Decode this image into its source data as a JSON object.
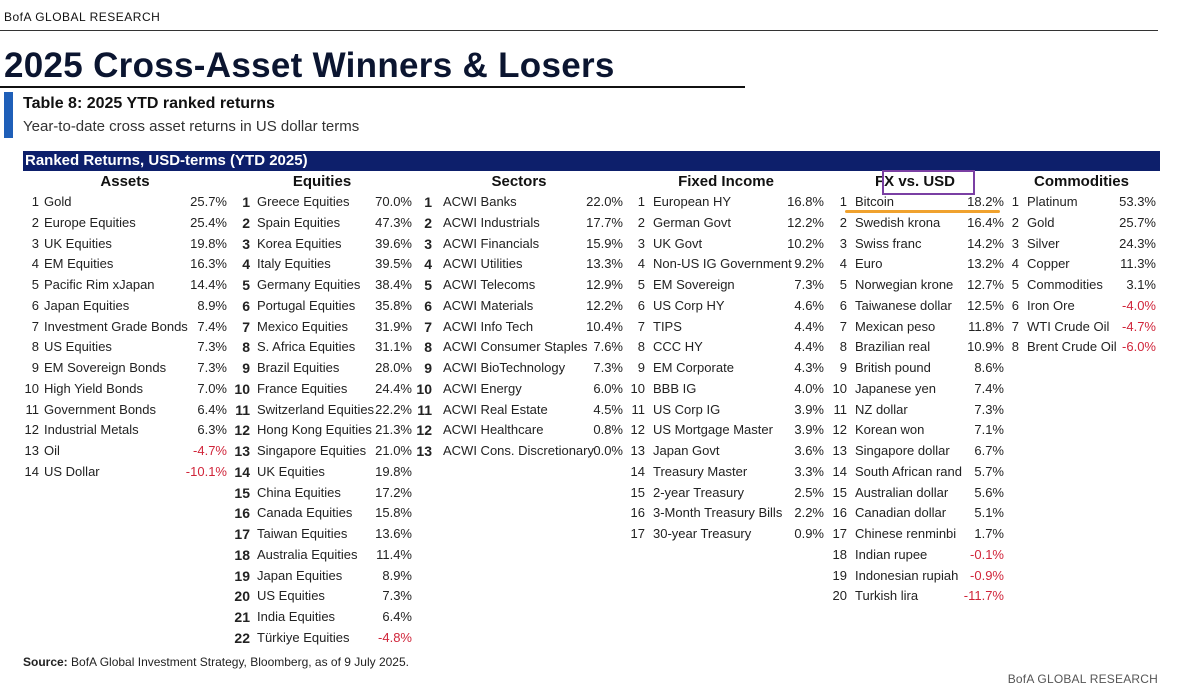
{
  "brand_top": "BofA GLOBAL RESEARCH",
  "main_title": "2025 Cross-Asset Winners & Losers",
  "table_title": "Table 8: 2025 YTD ranked returns",
  "table_subtitle": "Year-to-date cross asset returns in US dollar terms",
  "banner": "Ranked Returns, USD-terms (YTD 2025)",
  "colors": {
    "banner": "#0d1f6b",
    "accent": "#1f5fb8",
    "negative": "#d0253a",
    "highlight_box": "#7a3fa3",
    "highlight_line": "#f0a22e"
  },
  "columns": [
    {
      "key": "assets",
      "header": "Assets",
      "rows": [
        {
          "rank": "1",
          "name": "Gold",
          "value": "25.7%",
          "neg": false
        },
        {
          "rank": "2",
          "name": "Europe Equities",
          "value": "25.4%",
          "neg": false
        },
        {
          "rank": "3",
          "name": "UK Equities",
          "value": "19.8%",
          "neg": false
        },
        {
          "rank": "4",
          "name": "EM Equities",
          "value": "16.3%",
          "neg": false
        },
        {
          "rank": "5",
          "name": "Pacific Rim xJapan",
          "value": "14.4%",
          "neg": false
        },
        {
          "rank": "6",
          "name": "Japan Equities",
          "value": "8.9%",
          "neg": false
        },
        {
          "rank": "7",
          "name": "Investment Grade Bonds",
          "value": "7.4%",
          "neg": false
        },
        {
          "rank": "8",
          "name": "US Equities",
          "value": "7.3%",
          "neg": false
        },
        {
          "rank": "9",
          "name": "EM Sovereign Bonds",
          "value": "7.3%",
          "neg": false
        },
        {
          "rank": "10",
          "name": "High Yield Bonds",
          "value": "7.0%",
          "neg": false
        },
        {
          "rank": "11",
          "name": "Government Bonds",
          "value": "6.4%",
          "neg": false
        },
        {
          "rank": "12",
          "name": "Industrial Metals",
          "value": "6.3%",
          "neg": false
        },
        {
          "rank": "13",
          "name": "Oil",
          "value": "-4.7%",
          "neg": true
        },
        {
          "rank": "14",
          "name": "US Dollar",
          "value": "-10.1%",
          "neg": true
        }
      ]
    },
    {
      "key": "equities",
      "header": "Equities",
      "rows": [
        {
          "rank": "1",
          "name": "Greece Equities",
          "value": "70.0%",
          "neg": false
        },
        {
          "rank": "2",
          "name": "Spain Equities",
          "value": "47.3%",
          "neg": false
        },
        {
          "rank": "3",
          "name": "Korea Equities",
          "value": "39.6%",
          "neg": false
        },
        {
          "rank": "4",
          "name": "Italy Equities",
          "value": "39.5%",
          "neg": false
        },
        {
          "rank": "5",
          "name": "Germany Equities",
          "value": "38.4%",
          "neg": false
        },
        {
          "rank": "6",
          "name": "Portugal Equities",
          "value": "35.8%",
          "neg": false
        },
        {
          "rank": "7",
          "name": "Mexico Equities",
          "value": "31.9%",
          "neg": false
        },
        {
          "rank": "8",
          "name": "S. Africa Equities",
          "value": "31.1%",
          "neg": false
        },
        {
          "rank": "9",
          "name": "Brazil Equities",
          "value": "28.0%",
          "neg": false
        },
        {
          "rank": "10",
          "name": "France Equities",
          "value": "24.4%",
          "neg": false
        },
        {
          "rank": "11",
          "name": "Switzerland Equities",
          "value": "22.2%",
          "neg": false
        },
        {
          "rank": "12",
          "name": "Hong Kong Equities",
          "value": "21.3%",
          "neg": false
        },
        {
          "rank": "13",
          "name": "Singapore Equities",
          "value": "21.0%",
          "neg": false
        },
        {
          "rank": "14",
          "name": "UK Equities",
          "value": "19.8%",
          "neg": false
        },
        {
          "rank": "15",
          "name": "China Equities",
          "value": "17.2%",
          "neg": false
        },
        {
          "rank": "16",
          "name": "Canada Equities",
          "value": "15.8%",
          "neg": false
        },
        {
          "rank": "17",
          "name": "Taiwan Equities",
          "value": "13.6%",
          "neg": false
        },
        {
          "rank": "18",
          "name": "Australia Equities",
          "value": "11.4%",
          "neg": false
        },
        {
          "rank": "19",
          "name": "Japan Equities",
          "value": "8.9%",
          "neg": false
        },
        {
          "rank": "20",
          "name": "US Equities",
          "value": "7.3%",
          "neg": false
        },
        {
          "rank": "21",
          "name": "India Equities",
          "value": "6.4%",
          "neg": false
        },
        {
          "rank": "22",
          "name": "Türkiye Equities",
          "value": "-4.8%",
          "neg": true
        }
      ]
    },
    {
      "key": "sectors",
      "header": "Sectors",
      "rows": [
        {
          "rank": "1",
          "name": "ACWI Banks",
          "value": "22.0%",
          "neg": false
        },
        {
          "rank": "2",
          "name": "ACWI Industrials",
          "value": "17.7%",
          "neg": false
        },
        {
          "rank": "3",
          "name": "ACWI Financials",
          "value": "15.9%",
          "neg": false
        },
        {
          "rank": "4",
          "name": "ACWI Utilities",
          "value": "13.3%",
          "neg": false
        },
        {
          "rank": "5",
          "name": "ACWI Telecoms",
          "value": "12.9%",
          "neg": false
        },
        {
          "rank": "6",
          "name": "ACWI Materials",
          "value": "12.2%",
          "neg": false
        },
        {
          "rank": "7",
          "name": "ACWI Info Tech",
          "value": "10.4%",
          "neg": false
        },
        {
          "rank": "8",
          "name": "ACWI Consumer Staples",
          "value": "7.6%",
          "neg": false
        },
        {
          "rank": "9",
          "name": "ACWI BioTechnology",
          "value": "7.3%",
          "neg": false
        },
        {
          "rank": "10",
          "name": "ACWI Energy",
          "value": "6.0%",
          "neg": false
        },
        {
          "rank": "11",
          "name": "ACWI Real Estate",
          "value": "4.5%",
          "neg": false
        },
        {
          "rank": "12",
          "name": "ACWI Healthcare",
          "value": "0.8%",
          "neg": false
        },
        {
          "rank": "13",
          "name": "ACWI Cons. Discretionary",
          "value": "0.0%",
          "neg": false
        }
      ]
    },
    {
      "key": "fixed",
      "header": "Fixed Income",
      "rows": [
        {
          "rank": "1",
          "name": "European HY",
          "value": "16.8%",
          "neg": false
        },
        {
          "rank": "2",
          "name": "German Govt",
          "value": "12.2%",
          "neg": false
        },
        {
          "rank": "3",
          "name": "UK Govt",
          "value": "10.2%",
          "neg": false
        },
        {
          "rank": "4",
          "name": "Non-US IG Government",
          "value": "9.2%",
          "neg": false
        },
        {
          "rank": "5",
          "name": "EM Sovereign",
          "value": "7.3%",
          "neg": false
        },
        {
          "rank": "6",
          "name": "US Corp HY",
          "value": "4.6%",
          "neg": false
        },
        {
          "rank": "7",
          "name": "TIPS",
          "value": "4.4%",
          "neg": false
        },
        {
          "rank": "8",
          "name": "CCC HY",
          "value": "4.4%",
          "neg": false
        },
        {
          "rank": "9",
          "name": "EM Corporate",
          "value": "4.3%",
          "neg": false
        },
        {
          "rank": "10",
          "name": "BBB IG",
          "value": "4.0%",
          "neg": false
        },
        {
          "rank": "11",
          "name": "US Corp IG",
          "value": "3.9%",
          "neg": false
        },
        {
          "rank": "12",
          "name": "US Mortgage Master",
          "value": "3.9%",
          "neg": false
        },
        {
          "rank": "13",
          "name": "Japan Govt",
          "value": "3.6%",
          "neg": false
        },
        {
          "rank": "14",
          "name": "Treasury Master",
          "value": "3.3%",
          "neg": false
        },
        {
          "rank": "15",
          "name": "2-year Treasury",
          "value": "2.5%",
          "neg": false
        },
        {
          "rank": "16",
          "name": "3-Month Treasury Bills",
          "value": "2.2%",
          "neg": false
        },
        {
          "rank": "17",
          "name": "30-year Treasury",
          "value": "0.9%",
          "neg": false
        }
      ]
    },
    {
      "key": "fx",
      "header": "FX vs. USD",
      "rows": [
        {
          "rank": "1",
          "name": "Bitcoin",
          "value": "18.2%",
          "neg": false
        },
        {
          "rank": "2",
          "name": "Swedish krona",
          "value": "16.4%",
          "neg": false
        },
        {
          "rank": "3",
          "name": "Swiss franc",
          "value": "14.2%",
          "neg": false
        },
        {
          "rank": "4",
          "name": "Euro",
          "value": "13.2%",
          "neg": false
        },
        {
          "rank": "5",
          "name": "Norwegian krone",
          "value": "12.7%",
          "neg": false
        },
        {
          "rank": "6",
          "name": "Taiwanese dollar",
          "value": "12.5%",
          "neg": false
        },
        {
          "rank": "7",
          "name": "Mexican peso",
          "value": "11.8%",
          "neg": false
        },
        {
          "rank": "8",
          "name": "Brazilian real",
          "value": "10.9%",
          "neg": false
        },
        {
          "rank": "9",
          "name": "British pound",
          "value": "8.6%",
          "neg": false
        },
        {
          "rank": "10",
          "name": "Japanese yen",
          "value": "7.4%",
          "neg": false
        },
        {
          "rank": "11",
          "name": "NZ dollar",
          "value": "7.3%",
          "neg": false
        },
        {
          "rank": "12",
          "name": "Korean won",
          "value": "7.1%",
          "neg": false
        },
        {
          "rank": "13",
          "name": "Singapore dollar",
          "value": "6.7%",
          "neg": false
        },
        {
          "rank": "14",
          "name": "South African rand",
          "value": "5.7%",
          "neg": false
        },
        {
          "rank": "15",
          "name": "Australian dollar",
          "value": "5.6%",
          "neg": false
        },
        {
          "rank": "16",
          "name": "Canadian dollar",
          "value": "5.1%",
          "neg": false
        },
        {
          "rank": "17",
          "name": "Chinese renminbi",
          "value": "1.7%",
          "neg": false
        },
        {
          "rank": "18",
          "name": "Indian rupee",
          "value": "-0.1%",
          "neg": true
        },
        {
          "rank": "19",
          "name": "Indonesian rupiah",
          "value": "-0.9%",
          "neg": true
        },
        {
          "rank": "20",
          "name": "Turkish lira",
          "value": "-11.7%",
          "neg": true
        }
      ]
    },
    {
      "key": "comm",
      "header": "Commodities",
      "rows": [
        {
          "rank": "1",
          "name": "Platinum",
          "value": "53.3%",
          "neg": false
        },
        {
          "rank": "2",
          "name": "Gold",
          "value": "25.7%",
          "neg": false
        },
        {
          "rank": "3",
          "name": "Silver",
          "value": "24.3%",
          "neg": false
        },
        {
          "rank": "4",
          "name": "Copper",
          "value": "11.3%",
          "neg": false
        },
        {
          "rank": "5",
          "name": "Commodities",
          "value": "3.1%",
          "neg": false
        },
        {
          "rank": "6",
          "name": "Iron Ore",
          "value": "-4.0%",
          "neg": true
        },
        {
          "rank": "7",
          "name": "WTI Crude Oil",
          "value": "-4.7%",
          "neg": true
        },
        {
          "rank": "8",
          "name": "Brent Crude Oil",
          "value": "-6.0%",
          "neg": true
        }
      ]
    }
  ],
  "source_label": "Source:",
  "source_text": " BofA Global Investment Strategy, Bloomberg, as of 9 July 2025.",
  "brand_bottom": "BofA GLOBAL RESEARCH"
}
